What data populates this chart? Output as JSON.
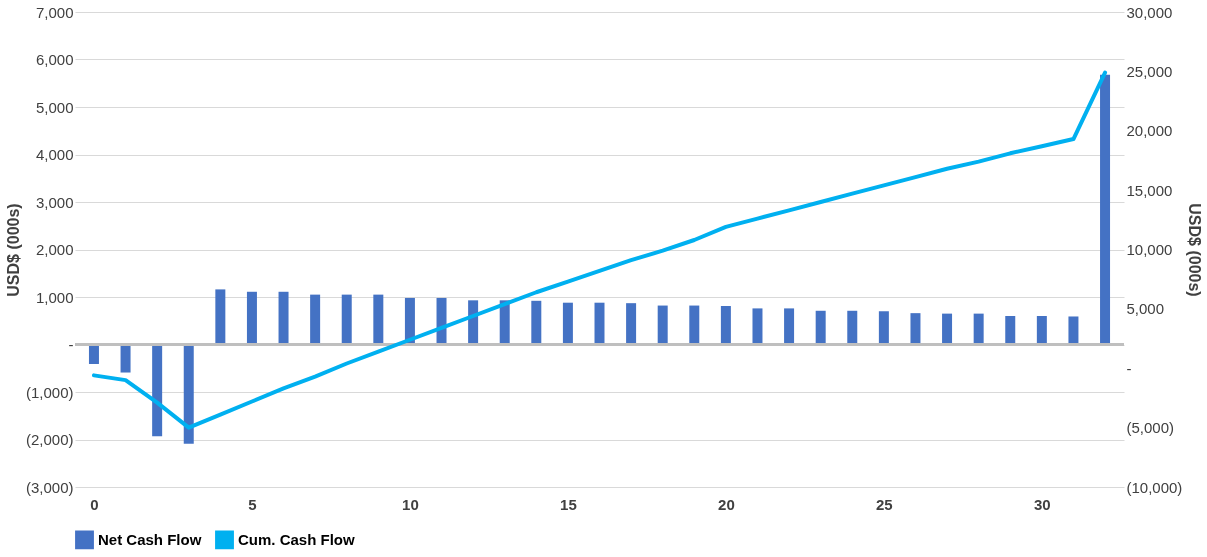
{
  "chart_data": {
    "type": "bar",
    "xlabel": null,
    "ylabel": "USD$ (000s)",
    "y2label": "USD$ (000s)",
    "x": [
      0,
      1,
      2,
      3,
      4,
      5,
      6,
      7,
      8,
      9,
      10,
      11,
      12,
      13,
      14,
      15,
      16,
      17,
      18,
      19,
      20,
      21,
      22,
      23,
      24,
      25,
      26,
      27,
      28,
      29,
      30,
      31,
      32
    ],
    "series": [
      {
        "name": "Net Cash Flow",
        "color": "#4472c4",
        "values": [
          -410,
          -590,
          -1930,
          -2090,
          1160,
          1110,
          1110,
          1050,
          1050,
          1050,
          980,
          980,
          930,
          930,
          920,
          880,
          880,
          870,
          820,
          820,
          810,
          760,
          760,
          710,
          710,
          700,
          660,
          650,
          650,
          600,
          600,
          590,
          5680
        ]
      },
      {
        "name": "Cum. Cash Flow",
        "type": "line",
        "axis": "y2",
        "color": "#00b0f0",
        "values": [
          -600,
          -1000,
          -2900,
          -5000,
          -3900,
          -2800,
          -1700,
          -700,
          400,
          1400,
          2400,
          3400,
          4400,
          5400,
          6400,
          7300,
          8200,
          9100,
          9900,
          10800,
          11900,
          12600,
          13300,
          14000,
          14700,
          15400,
          16100,
          16800,
          17400,
          18100,
          18700,
          19300,
          24900
        ]
      }
    ],
    "xlim": [
      -0.6,
      32.6
    ],
    "xticks": [
      0,
      5,
      10,
      15,
      20,
      25,
      30
    ],
    "ylim": [
      -3000,
      7000
    ],
    "yticks": [
      {
        "value": -3000,
        "label": "(3,000)"
      },
      {
        "value": -2000,
        "label": "(2,000)"
      },
      {
        "value": -1000,
        "label": "(1,000)"
      },
      {
        "value": 0,
        "label": "-"
      },
      {
        "value": 1000,
        "label": "1,000"
      },
      {
        "value": 2000,
        "label": "2,000"
      },
      {
        "value": 3000,
        "label": "3,000"
      },
      {
        "value": 4000,
        "label": "4,000"
      },
      {
        "value": 5000,
        "label": "5,000"
      },
      {
        "value": 6000,
        "label": "6,000"
      },
      {
        "value": 7000,
        "label": "7,000"
      }
    ],
    "y2lim": [
      -10000,
      30000
    ],
    "y2ticks": [
      {
        "value": -10000,
        "label": "(10,000)"
      },
      {
        "value": -5000,
        "label": "(5,000)"
      },
      {
        "value": 0,
        "label": "-"
      },
      {
        "value": 5000,
        "label": "5,000"
      },
      {
        "value": 10000,
        "label": "10,000"
      },
      {
        "value": 15000,
        "label": "15,000"
      },
      {
        "value": 20000,
        "label": "20,000"
      },
      {
        "value": 25000,
        "label": "25,000"
      },
      {
        "value": 30000,
        "label": "30,000"
      }
    ],
    "ref_lines": [
      {
        "axis": "y",
        "value": 0,
        "color": "#bfbfbf"
      }
    ],
    "grid": "y",
    "legend": "bottom"
  }
}
